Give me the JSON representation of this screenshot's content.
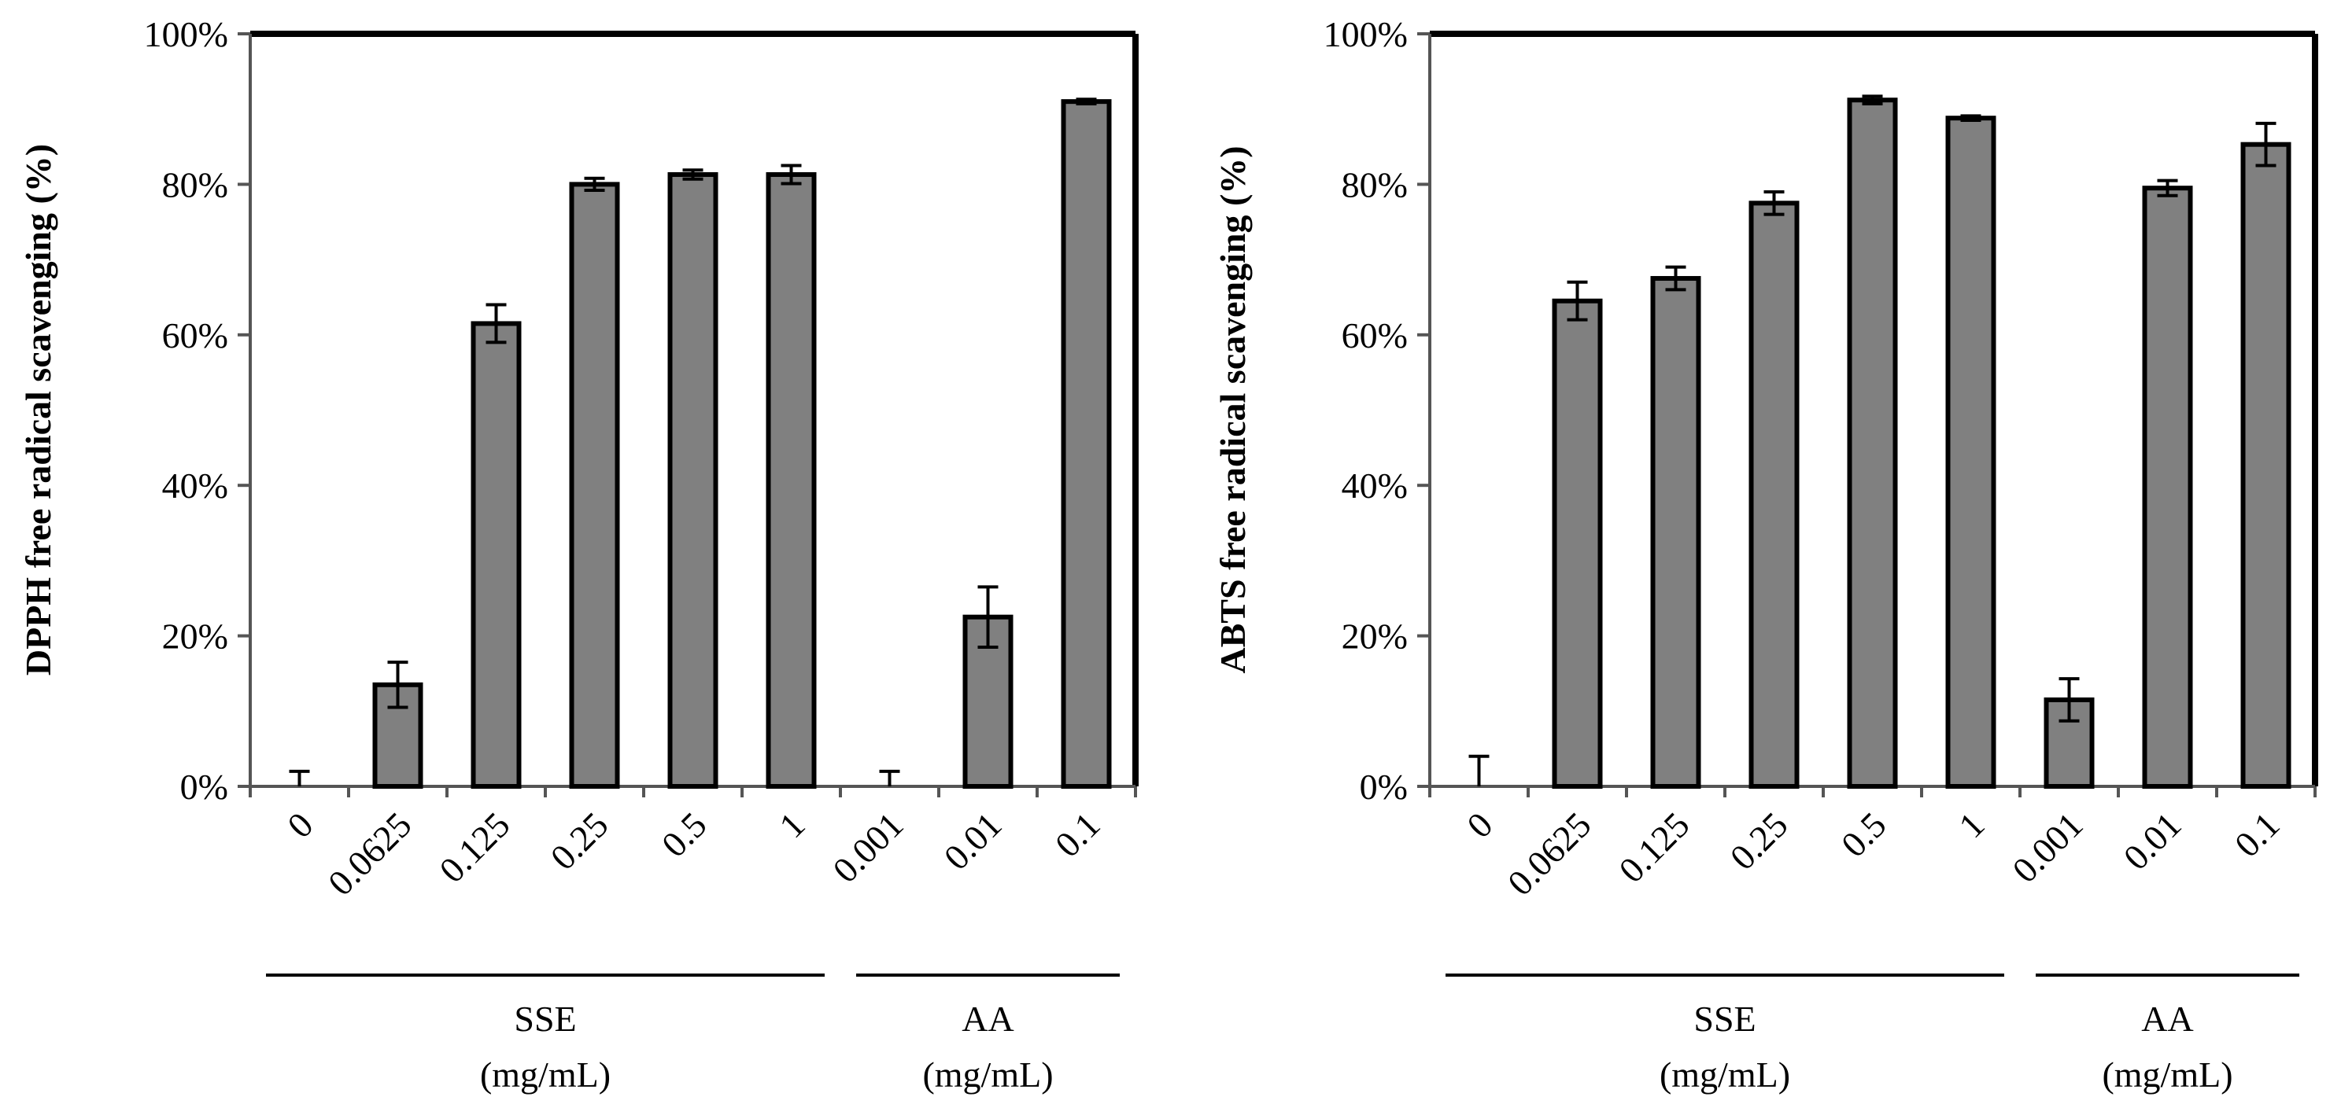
{
  "chart_data": [
    {
      "type": "bar",
      "title": "",
      "xlabel": "",
      "ylabel": "DPPH free radical scavenging (%)",
      "ylim": [
        0,
        100
      ],
      "yticks": [
        "0%",
        "20%",
        "40%",
        "60%",
        "80%",
        "100%"
      ],
      "categories": [
        "0",
        "0.0625",
        "0.125",
        "0.25",
        "0.5",
        "1",
        "0.001",
        "0.01",
        "0.1"
      ],
      "values": [
        0,
        13.5,
        61.5,
        80,
        81.3,
        81.3,
        0,
        22.5,
        91
      ],
      "errors": [
        2,
        3,
        2.5,
        0.8,
        0.6,
        1.2,
        2,
        4,
        0.3
      ],
      "groups": [
        {
          "name": "SSE",
          "unit": "(mg/mL)",
          "start": 0,
          "end": 5
        },
        {
          "name": "AA",
          "unit": "(mg/mL)",
          "start": 6,
          "end": 8
        }
      ],
      "bar_color": "#808080"
    },
    {
      "type": "bar",
      "title": "",
      "xlabel": "",
      "ylabel": "ABTS free radical scavenging (%)",
      "ylim": [
        0,
        100
      ],
      "yticks": [
        "0%",
        "20%",
        "40%",
        "60%",
        "80%",
        "100%"
      ],
      "categories": [
        "0",
        "0.0625",
        "0.125",
        "0.25",
        "0.5",
        "1",
        "0.001",
        "0.01",
        "0.1"
      ],
      "values": [
        0,
        64.5,
        67.5,
        77.5,
        91.2,
        88.8,
        11.5,
        79.5,
        85.3
      ],
      "errors": [
        4,
        2.5,
        1.5,
        1.5,
        0.5,
        0.3,
        2.8,
        1,
        2.8
      ],
      "groups": [
        {
          "name": "SSE",
          "unit": "(mg/mL)",
          "start": 0,
          "end": 5
        },
        {
          "name": "AA",
          "unit": "(mg/mL)",
          "start": 6,
          "end": 8
        }
      ],
      "bar_color": "#808080"
    }
  ]
}
